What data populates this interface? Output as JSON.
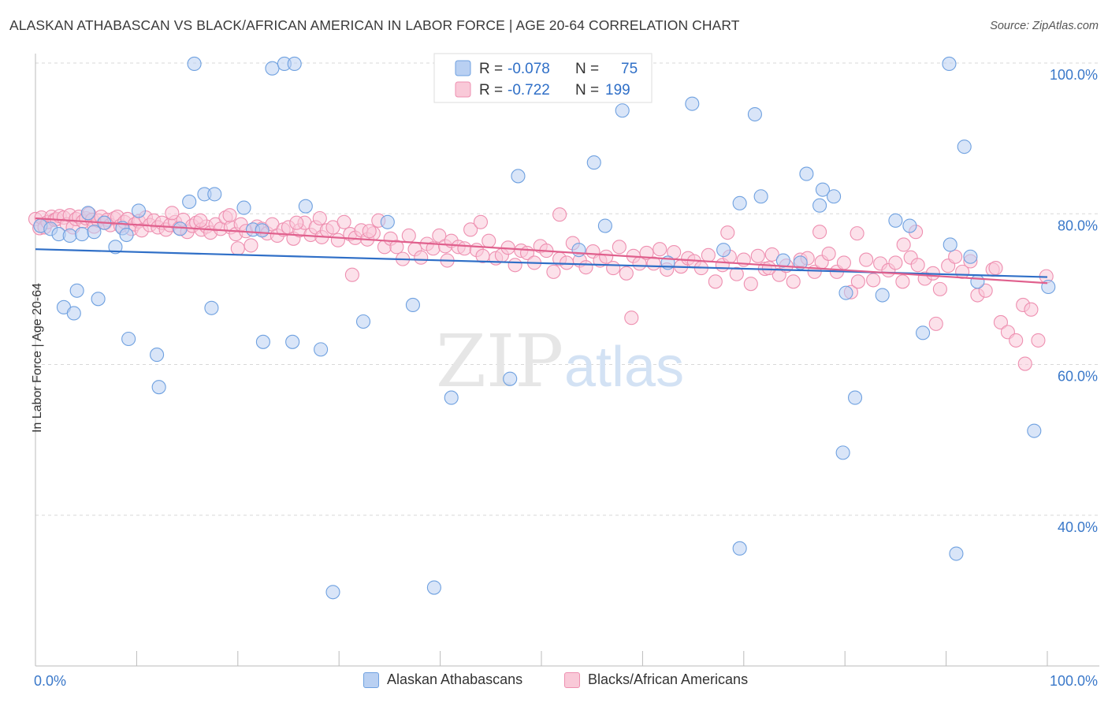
{
  "header": {
    "title": "ALASKAN ATHABASCAN VS BLACK/AFRICAN AMERICAN IN LABOR FORCE | AGE 20-64 CORRELATION CHART",
    "source": "Source: ZipAtlas.com"
  },
  "watermark": {
    "zip": "ZIP",
    "atlas": "atlas"
  },
  "legend_top": [
    {
      "r_label": "R =",
      "r_value": "-0.078",
      "n_label": "N =",
      "n_value": "75"
    },
    {
      "r_label": "R =",
      "r_value": "-0.722",
      "n_label": "N =",
      "n_value": "199"
    }
  ],
  "chart_data": {
    "type": "scatter",
    "title": "ALASKAN ATHABASCAN VS BLACK/AFRICAN AMERICAN IN LABOR FORCE | AGE 20-64 CORRELATION CHART",
    "xlabel": "",
    "ylabel": "In Labor Force | Age 20-64",
    "xlim": [
      0,
      100
    ],
    "ylim": [
      20,
      100
    ],
    "x_tick_labels": [
      "0.0%",
      "100.0%"
    ],
    "y_tick_labels": [
      "100.0%",
      "80.0%",
      "60.0%",
      "40.0%"
    ],
    "y_ticks": [
      100,
      80,
      60,
      40
    ],
    "grid": true,
    "legend_position": "top-center",
    "series": [
      {
        "name": "Alaskan Athabascans",
        "color": "#6fa1e0",
        "fill": "#b9d0f2",
        "line_color": "#2f6fc7",
        "trend": [
          [
            0,
            75.3
          ],
          [
            100,
            71.6
          ]
        ],
        "points": [
          [
            0.5,
            78.4
          ],
          [
            1.5,
            78.0
          ],
          [
            2.3,
            77.3
          ],
          [
            2.8,
            67.6
          ],
          [
            3.4,
            77.1
          ],
          [
            3.8,
            66.8
          ],
          [
            4.1,
            69.8
          ],
          [
            4.6,
            77.3
          ],
          [
            5.2,
            80.1
          ],
          [
            5.8,
            77.6
          ],
          [
            6.2,
            68.7
          ],
          [
            6.8,
            78.8
          ],
          [
            7.9,
            75.6
          ],
          [
            8.6,
            78.1
          ],
          [
            9.0,
            77.2
          ],
          [
            9.2,
            63.4
          ],
          [
            10.2,
            80.4
          ],
          [
            12.0,
            61.3
          ],
          [
            12.2,
            57.0
          ],
          [
            14.3,
            78.0
          ],
          [
            15.2,
            81.6
          ],
          [
            15.7,
            99.9
          ],
          [
            16.7,
            82.6
          ],
          [
            17.4,
            67.5
          ],
          [
            17.7,
            82.6
          ],
          [
            20.6,
            80.8
          ],
          [
            21.5,
            77.9
          ],
          [
            22.4,
            77.8
          ],
          [
            22.5,
            63.0
          ],
          [
            23.4,
            99.3
          ],
          [
            24.6,
            99.9
          ],
          [
            25.4,
            63.0
          ],
          [
            25.6,
            99.9
          ],
          [
            26.7,
            81.0
          ],
          [
            28.2,
            62.0
          ],
          [
            29.4,
            29.8
          ],
          [
            32.4,
            65.7
          ],
          [
            34.8,
            78.9
          ],
          [
            37.3,
            67.9
          ],
          [
            39.4,
            30.4
          ],
          [
            41.1,
            55.6
          ],
          [
            46.9,
            58.1
          ],
          [
            47.7,
            85.0
          ],
          [
            53.7,
            75.2
          ],
          [
            55.2,
            86.8
          ],
          [
            56.3,
            78.4
          ],
          [
            58.0,
            93.7
          ],
          [
            62.5,
            73.5
          ],
          [
            64.9,
            94.6
          ],
          [
            68.0,
            75.2
          ],
          [
            69.6,
            81.4
          ],
          [
            69.6,
            35.6
          ],
          [
            71.1,
            93.2
          ],
          [
            71.7,
            82.3
          ],
          [
            73.9,
            73.8
          ],
          [
            75.6,
            73.5
          ],
          [
            76.2,
            85.3
          ],
          [
            77.5,
            81.1
          ],
          [
            77.8,
            83.2
          ],
          [
            78.9,
            82.3
          ],
          [
            80.1,
            69.5
          ],
          [
            81.0,
            55.6
          ],
          [
            79.8,
            48.3
          ],
          [
            83.7,
            69.2
          ],
          [
            85.0,
            79.1
          ],
          [
            86.4,
            78.4
          ],
          [
            87.7,
            64.2
          ],
          [
            90.4,
            75.9
          ],
          [
            90.3,
            99.9
          ],
          [
            91.0,
            34.9
          ],
          [
            91.8,
            88.9
          ],
          [
            92.4,
            74.3
          ],
          [
            93.1,
            71.0
          ],
          [
            98.7,
            51.2
          ],
          [
            100.1,
            70.3
          ]
        ]
      },
      {
        "name": "Blacks/African Americans",
        "color": "#ee8fb0",
        "fill": "#f9c9d8",
        "line_color": "#e0608d",
        "trend": [
          [
            0,
            79.4
          ],
          [
            100,
            70.8
          ]
        ],
        "points": [
          [
            0.0,
            79.3
          ],
          [
            0.4,
            78.1
          ],
          [
            0.6,
            79.5
          ],
          [
            0.9,
            78.2
          ],
          [
            1.2,
            78.9
          ],
          [
            1.6,
            79.6
          ],
          [
            1.9,
            79.2
          ],
          [
            2.1,
            79.3
          ],
          [
            2.4,
            79.7
          ],
          [
            2.8,
            79.5
          ],
          [
            3.1,
            78.6
          ],
          [
            3.4,
            79.8
          ],
          [
            3.7,
            78.2
          ],
          [
            4.0,
            79.3
          ],
          [
            4.3,
            79.6
          ],
          [
            4.7,
            79.0
          ],
          [
            5.0,
            79.4
          ],
          [
            5.3,
            80.0
          ],
          [
            5.6,
            79.2
          ],
          [
            5.8,
            78.3
          ],
          [
            6.2,
            79.1
          ],
          [
            6.5,
            79.6
          ],
          [
            6.9,
            78.8
          ],
          [
            7.1,
            79.2
          ],
          [
            7.4,
            78.5
          ],
          [
            7.8,
            79.4
          ],
          [
            8.1,
            79.6
          ],
          [
            8.4,
            78.4
          ],
          [
            8.8,
            78.9
          ],
          [
            9.1,
            79.3
          ],
          [
            9.5,
            78.0
          ],
          [
            9.8,
            78.6
          ],
          [
            10.2,
            79.0
          ],
          [
            10.5,
            77.8
          ],
          [
            10.9,
            79.5
          ],
          [
            11.3,
            78.5
          ],
          [
            11.7,
            79.1
          ],
          [
            12.1,
            78.2
          ],
          [
            12.5,
            78.8
          ],
          [
            12.9,
            77.9
          ],
          [
            13.3,
            78.5
          ],
          [
            13.8,
            78.9
          ],
          [
            14.2,
            78.1
          ],
          [
            14.6,
            79.2
          ],
          [
            15.0,
            77.6
          ],
          [
            15.5,
            78.4
          ],
          [
            15.9,
            78.8
          ],
          [
            16.4,
            77.9
          ],
          [
            16.9,
            78.3
          ],
          [
            17.3,
            77.5
          ],
          [
            17.8,
            78.6
          ],
          [
            18.3,
            78.0
          ],
          [
            18.8,
            79.5
          ],
          [
            19.3,
            78.2
          ],
          [
            19.8,
            77.3
          ],
          [
            20.3,
            78.6
          ],
          [
            20.8,
            77.7
          ],
          [
            21.3,
            75.8
          ],
          [
            21.9,
            78.3
          ],
          [
            22.4,
            78.0
          ],
          [
            22.9,
            77.4
          ],
          [
            23.4,
            78.6
          ],
          [
            23.9,
            77.1
          ],
          [
            24.5,
            77.9
          ],
          [
            25.0,
            78.2
          ],
          [
            25.5,
            76.7
          ],
          [
            26.1,
            77.8
          ],
          [
            26.6,
            78.8
          ],
          [
            27.2,
            77.2
          ],
          [
            27.7,
            78.2
          ],
          [
            28.3,
            76.9
          ],
          [
            28.8,
            77.8
          ],
          [
            29.4,
            78.2
          ],
          [
            29.9,
            76.5
          ],
          [
            30.5,
            78.9
          ],
          [
            31.1,
            77.3
          ],
          [
            31.6,
            76.8
          ],
          [
            32.2,
            77.8
          ],
          [
            32.8,
            76.6
          ],
          [
            33.4,
            77.4
          ],
          [
            33.9,
            79.1
          ],
          [
            34.5,
            75.6
          ],
          [
            35.1,
            76.7
          ],
          [
            35.7,
            75.6
          ],
          [
            36.3,
            74.0
          ],
          [
            36.9,
            77.1
          ],
          [
            37.5,
            75.3
          ],
          [
            38.1,
            74.2
          ],
          [
            38.7,
            76.0
          ],
          [
            39.3,
            75.4
          ],
          [
            39.9,
            77.1
          ],
          [
            40.5,
            75.7
          ],
          [
            41.1,
            76.4
          ],
          [
            41.8,
            75.6
          ],
          [
            42.4,
            75.4
          ],
          [
            43.0,
            77.9
          ],
          [
            43.6,
            75.2
          ],
          [
            44.2,
            74.4
          ],
          [
            44.8,
            76.4
          ],
          [
            45.5,
            74.1
          ],
          [
            46.1,
            74.5
          ],
          [
            46.7,
            75.5
          ],
          [
            47.4,
            73.2
          ],
          [
            48.0,
            75.1
          ],
          [
            48.6,
            74.8
          ],
          [
            49.3,
            73.5
          ],
          [
            49.9,
            75.7
          ],
          [
            50.5,
            75.1
          ],
          [
            51.2,
            72.3
          ],
          [
            51.8,
            74.0
          ],
          [
            52.5,
            73.5
          ],
          [
            53.1,
            76.1
          ],
          [
            53.8,
            73.8
          ],
          [
            54.4,
            72.9
          ],
          [
            55.1,
            75.0
          ],
          [
            55.8,
            73.8
          ],
          [
            56.4,
            74.3
          ],
          [
            57.1,
            72.8
          ],
          [
            57.7,
            75.6
          ],
          [
            58.4,
            72.1
          ],
          [
            59.1,
            74.4
          ],
          [
            59.7,
            73.4
          ],
          [
            60.4,
            74.8
          ],
          [
            61.1,
            73.4
          ],
          [
            61.7,
            75.3
          ],
          [
            62.4,
            72.6
          ],
          [
            63.1,
            74.9
          ],
          [
            63.8,
            73.0
          ],
          [
            64.5,
            74.1
          ],
          [
            65.1,
            73.7
          ],
          [
            65.8,
            72.8
          ],
          [
            66.5,
            74.5
          ],
          [
            67.2,
            71.0
          ],
          [
            67.9,
            73.2
          ],
          [
            68.6,
            74.3
          ],
          [
            69.3,
            72.0
          ],
          [
            70.0,
            73.9
          ],
          [
            70.7,
            70.7
          ],
          [
            71.4,
            74.4
          ],
          [
            72.1,
            72.7
          ],
          [
            72.8,
            74.6
          ],
          [
            73.5,
            71.9
          ],
          [
            74.2,
            73.1
          ],
          [
            74.9,
            71.0
          ],
          [
            75.6,
            73.9
          ],
          [
            76.3,
            74.1
          ],
          [
            77.0,
            72.3
          ],
          [
            77.7,
            73.6
          ],
          [
            78.4,
            74.7
          ],
          [
            79.2,
            72.3
          ],
          [
            79.9,
            73.5
          ],
          [
            80.6,
            69.6
          ],
          [
            81.3,
            71.0
          ],
          [
            82.1,
            73.9
          ],
          [
            82.8,
            71.2
          ],
          [
            83.5,
            73.4
          ],
          [
            84.3,
            72.5
          ],
          [
            85.0,
            73.5
          ],
          [
            85.7,
            71.0
          ],
          [
            86.5,
            74.2
          ],
          [
            87.2,
            73.2
          ],
          [
            87.9,
            71.4
          ],
          [
            88.7,
            72.1
          ],
          [
            89.4,
            70.0
          ],
          [
            90.2,
            73.1
          ],
          [
            90.9,
            74.3
          ],
          [
            91.6,
            72.3
          ],
          [
            92.4,
            73.7
          ],
          [
            93.1,
            69.2
          ],
          [
            93.9,
            69.8
          ],
          [
            94.6,
            72.6
          ],
          [
            95.4,
            65.6
          ],
          [
            96.1,
            64.3
          ],
          [
            96.9,
            63.2
          ],
          [
            97.6,
            67.9
          ],
          [
            98.4,
            67.3
          ],
          [
            99.1,
            63.2
          ],
          [
            99.9,
            71.7
          ],
          [
            97.8,
            60.1
          ],
          [
            94.9,
            72.8
          ],
          [
            89.0,
            65.4
          ],
          [
            87.0,
            77.6
          ],
          [
            85.8,
            75.9
          ],
          [
            81.2,
            77.4
          ],
          [
            77.5,
            77.6
          ],
          [
            72.5,
            72.8
          ],
          [
            68.4,
            77.5
          ],
          [
            58.9,
            66.2
          ],
          [
            51.8,
            79.9
          ],
          [
            44.0,
            78.9
          ],
          [
            40.7,
            73.8
          ],
          [
            33.0,
            77.7
          ],
          [
            31.3,
            71.9
          ],
          [
            25.8,
            78.8
          ],
          [
            19.2,
            79.8
          ],
          [
            13.5,
            80.1
          ],
          [
            16.3,
            79.1
          ],
          [
            20.0,
            75.4
          ],
          [
            28.1,
            79.4
          ]
        ]
      }
    ]
  },
  "legend_bottom": [
    {
      "label": "Alaskan Athabascans",
      "color": "#b9d0f2",
      "border": "#6fa1e0"
    },
    {
      "label": "Blacks/African Americans",
      "color": "#f9c9d8",
      "border": "#ee8fb0"
    }
  ]
}
